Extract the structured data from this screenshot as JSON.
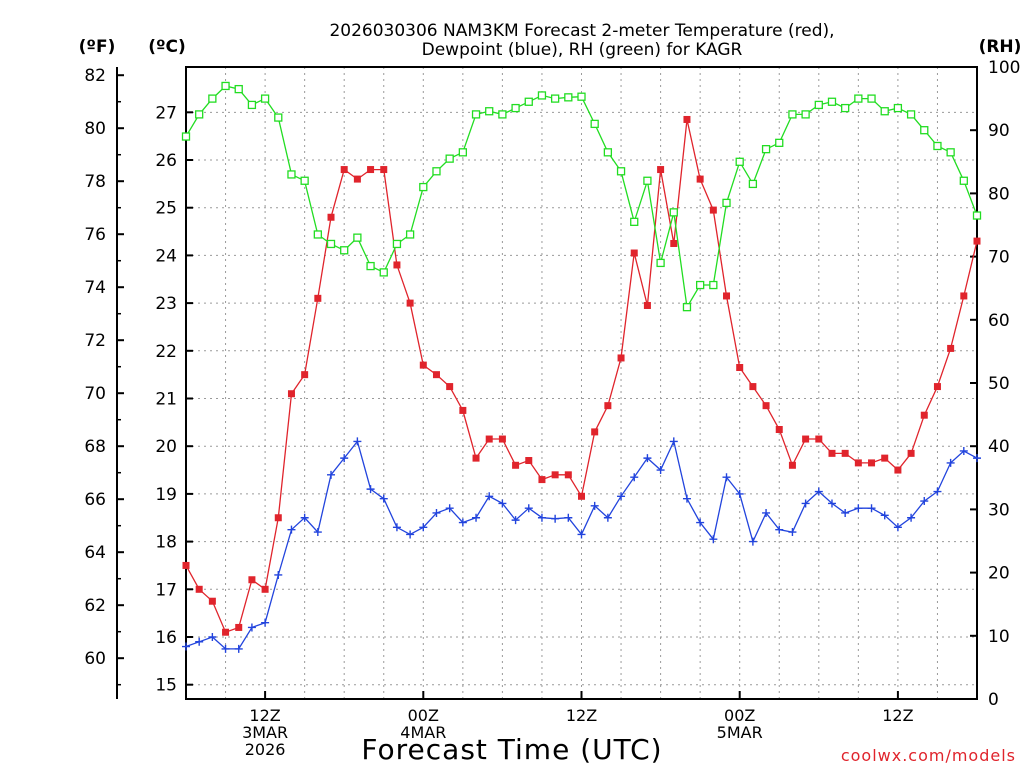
{
  "title_lines": [
    "2026030306 NAM3KM Forecast 2-meter Temperature (red),",
    "Dewpoint (blue), RH (green) for KAGR"
  ],
  "credit": "coolwx.com/models",
  "chart_data": {
    "type": "line",
    "title": "2026030306 NAM3KM Forecast 2-meter Temperature (red), Dewpoint (blue), RH (green) for KAGR",
    "xlabel": "Forecast Time (UTC)",
    "x_unit": "hours since 2026-03-03 06Z",
    "x": [
      0,
      1,
      2,
      3,
      4,
      5,
      6,
      7,
      8,
      9,
      10,
      11,
      12,
      13,
      14,
      15,
      16,
      17,
      18,
      19,
      20,
      21,
      22,
      23,
      24,
      25,
      26,
      27,
      28,
      29,
      30,
      31,
      32,
      33,
      34,
      35,
      36,
      37,
      38,
      39,
      40,
      41,
      42,
      43,
      44,
      45,
      46,
      47,
      48,
      49,
      50,
      51,
      52,
      53,
      54,
      55,
      56,
      57,
      58,
      59,
      60
    ],
    "xlim": [
      0,
      60
    ],
    "x_ticks": [
      {
        "x": 6,
        "lines": [
          "12Z",
          "3MAR",
          "2026"
        ]
      },
      {
        "x": 18,
        "lines": [
          "00Z",
          "4MAR"
        ]
      },
      {
        "x": 30,
        "lines": [
          "12Z"
        ]
      },
      {
        "x": 42,
        "lines": [
          "00Z",
          "5MAR"
        ]
      },
      {
        "x": 54,
        "lines": [
          "12Z"
        ]
      }
    ],
    "y_left_outer": {
      "unit_label": "(ºF)",
      "ticks": [
        60,
        62,
        64,
        66,
        68,
        70,
        72,
        74,
        76,
        78,
        80,
        82
      ]
    },
    "y_left_inner": {
      "unit_label": "(ºC)",
      "ticks": [
        15,
        16,
        17,
        18,
        19,
        20,
        21,
        22,
        23,
        24,
        25,
        26,
        27
      ],
      "ylim": [
        14.7,
        27.95
      ]
    },
    "y_right": {
      "unit_label": "(RH)",
      "ticks": [
        0,
        10,
        20,
        30,
        40,
        50,
        60,
        70,
        80,
        90,
        100
      ],
      "ylim": [
        0,
        100
      ]
    },
    "series": [
      {
        "name": "Temperature",
        "axis": "C",
        "color": "#e0242c",
        "marker": "filled-square",
        "values": [
          17.5,
          17.0,
          16.75,
          16.1,
          16.2,
          17.2,
          17.0,
          18.5,
          21.1,
          21.5,
          23.1,
          24.8,
          25.8,
          25.6,
          25.8,
          25.8,
          23.8,
          23.0,
          21.7,
          21.5,
          21.25,
          20.75,
          19.75,
          20.15,
          20.15,
          19.6,
          19.7,
          19.3,
          19.4,
          19.4,
          18.95,
          20.3,
          20.85,
          21.85,
          24.05,
          22.95,
          25.8,
          24.25,
          26.85,
          25.6,
          24.95,
          23.15,
          21.65,
          21.25,
          20.85,
          20.35,
          19.6,
          20.15,
          20.15,
          19.85,
          19.85,
          19.65,
          19.65,
          19.75,
          19.5,
          19.85,
          20.65,
          21.25,
          22.05,
          23.15,
          24.3
        ]
      },
      {
        "name": "Dewpoint",
        "axis": "C",
        "color": "#2244dd",
        "marker": "plus",
        "values": [
          15.8,
          15.9,
          16.0,
          15.75,
          15.75,
          16.2,
          16.3,
          17.3,
          18.25,
          18.5,
          18.2,
          19.4,
          19.75,
          20.1,
          19.1,
          18.9,
          18.3,
          18.15,
          18.3,
          18.6,
          18.7,
          18.4,
          18.5,
          18.95,
          18.8,
          18.45,
          18.7,
          18.5,
          18.48,
          18.5,
          18.15,
          18.75,
          18.5,
          18.95,
          19.35,
          19.75,
          19.5,
          20.1,
          18.9,
          18.4,
          18.05,
          19.35,
          19.0,
          18.0,
          18.6,
          18.25,
          18.2,
          18.8,
          19.05,
          18.8,
          18.6,
          18.7,
          18.7,
          18.55,
          18.3,
          18.5,
          18.85,
          19.05,
          19.65,
          19.9,
          19.75
        ]
      },
      {
        "name": "RH",
        "axis": "RH",
        "color": "#22dd22",
        "marker": "open-square",
        "values": [
          89,
          92.5,
          95,
          97,
          96.5,
          94,
          95,
          92,
          83,
          82,
          73.5,
          72,
          71,
          73,
          68.5,
          67.5,
          72,
          73.5,
          81,
          83.5,
          85.5,
          86.5,
          92.5,
          93,
          92.5,
          93.5,
          94.5,
          95.5,
          95,
          95.2,
          95.3,
          91,
          86.5,
          83.5,
          75.5,
          82,
          69,
          77,
          62,
          65.5,
          65.5,
          78.5,
          85,
          81.5,
          87,
          88,
          92.5,
          92.5,
          94,
          94.5,
          93.5,
          95,
          95,
          93,
          93.5,
          92.5,
          90,
          87.5,
          86.5,
          82,
          76.5
        ]
      }
    ]
  }
}
